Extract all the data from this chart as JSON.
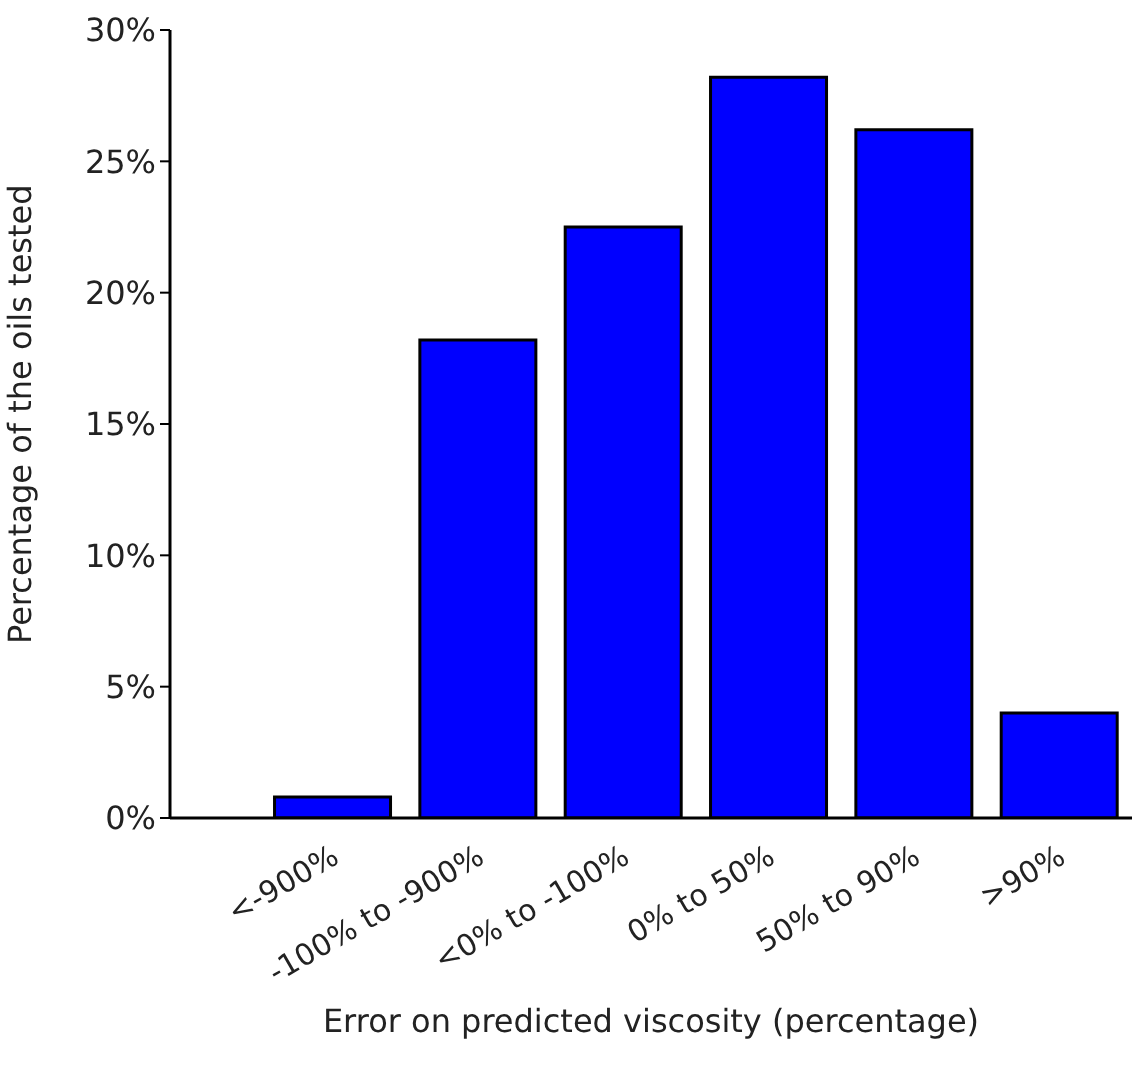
{
  "chart_data": {
    "type": "bar",
    "xlabel": "Error on predicted viscosity (percentage)",
    "ylabel": "Percentage of the oils tested",
    "categories": [
      "<-900%",
      "-100% to -900%",
      "<0% to -100%",
      "0% to 50%",
      "50% to 90%",
      ">90%"
    ],
    "values": [
      0.8,
      18.2,
      22.5,
      28.2,
      26.2,
      4.0
    ],
    "color": "#0000ff",
    "ylim": [
      0,
      30
    ],
    "yticks": [
      {
        "value": 0,
        "label": "0%"
      },
      {
        "value": 5,
        "label": "5%"
      },
      {
        "value": 10,
        "label": "10%"
      },
      {
        "value": 15,
        "label": "15%"
      },
      {
        "value": 20,
        "label": "20%"
      },
      {
        "value": 25,
        "label": "25%"
      },
      {
        "value": 30,
        "label": "30%"
      }
    ],
    "grid": false,
    "legend": false
  }
}
